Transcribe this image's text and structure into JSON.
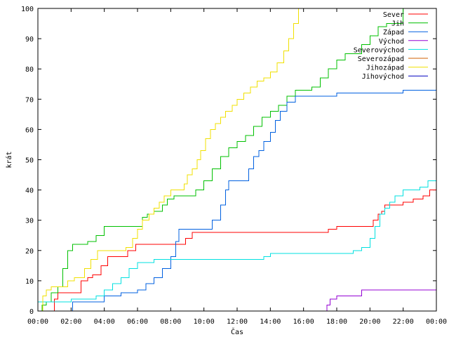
{
  "chart_data": {
    "type": "line",
    "title": "",
    "xlabel": "Čas",
    "ylabel": "krát",
    "xlim": [
      0,
      24
    ],
    "ylim": [
      0,
      100
    ],
    "grid": false,
    "legend_position": "top-right",
    "x_unit": "hours",
    "x_ticks": [
      {
        "value": 0,
        "label": "00:00"
      },
      {
        "value": 2,
        "label": "02:00"
      },
      {
        "value": 4,
        "label": "04:00"
      },
      {
        "value": 6,
        "label": "06:00"
      },
      {
        "value": 8,
        "label": "08:00"
      },
      {
        "value": 10,
        "label": "10:00"
      },
      {
        "value": 12,
        "label": "12:00"
      },
      {
        "value": 14,
        "label": "14:00"
      },
      {
        "value": 16,
        "label": "16:00"
      },
      {
        "value": 18,
        "label": "18:00"
      },
      {
        "value": 20,
        "label": "20:00"
      },
      {
        "value": 22,
        "label": "22:00"
      },
      {
        "value": 24,
        "label": "00:00"
      }
    ],
    "y_ticks": [
      {
        "value": 0,
        "label": "0"
      },
      {
        "value": 10,
        "label": "10"
      },
      {
        "value": 20,
        "label": "20"
      },
      {
        "value": 30,
        "label": "30"
      },
      {
        "value": 40,
        "label": "40"
      },
      {
        "value": 50,
        "label": "50"
      },
      {
        "value": 60,
        "label": "60"
      },
      {
        "value": 70,
        "label": "70"
      },
      {
        "value": 80,
        "label": "80"
      },
      {
        "value": 90,
        "label": "90"
      },
      {
        "value": 100,
        "label": "100"
      }
    ],
    "series": [
      {
        "name": "Sever",
        "color": "#ff0000",
        "x": [
          0.9,
          1.0,
          1.2,
          2.3,
          2.6,
          3.0,
          3.3,
          3.8,
          4.2,
          5.0,
          5.4,
          5.9,
          6.3,
          8.5,
          8.9,
          9.3,
          10.0,
          13.0,
          15.0,
          17.5,
          18.0,
          19.2,
          20.2,
          20.5,
          20.7,
          20.9,
          21.2,
          22.0,
          22.6,
          23.2,
          23.6,
          24.0
        ],
        "y": [
          0,
          4,
          6,
          6,
          10,
          11,
          12,
          15,
          18,
          18,
          20,
          22,
          22,
          22,
          24,
          26,
          26,
          26,
          26,
          27,
          28,
          28,
          30,
          32,
          33,
          35,
          35,
          36,
          37,
          38,
          40,
          40
        ]
      },
      {
        "name": "Jih",
        "color": "#00c000",
        "x": [
          0.1,
          0.25,
          0.5,
          0.8,
          1.2,
          1.5,
          1.8,
          2.1,
          2.5,
          3.0,
          3.5,
          4.0,
          5.0,
          6.0,
          6.3,
          6.6,
          7.0,
          7.5,
          7.8,
          8.2,
          8.5,
          9.0,
          9.5,
          10.0,
          10.5,
          11.0,
          11.5,
          12.0,
          12.5,
          13.0,
          13.5,
          14.0,
          14.5,
          15.0,
          15.5,
          16.0,
          16.5,
          17.0,
          17.5,
          18.0,
          18.5,
          19.0,
          19.5,
          20.0,
          20.5,
          21.0,
          21.5,
          22.0
        ],
        "y": [
          0,
          2,
          3,
          6,
          8,
          14,
          20,
          22,
          22,
          23,
          25,
          28,
          28,
          28,
          31,
          32,
          33,
          35,
          37,
          38,
          38,
          38,
          40,
          43,
          47,
          51,
          54,
          56,
          58,
          61,
          64,
          66,
          68,
          71,
          73,
          73,
          74,
          77,
          80,
          83,
          85,
          85,
          88,
          91,
          94,
          95,
          95,
          100
        ]
      },
      {
        "name": "Západ",
        "color": "#0060e0",
        "x": [
          0.0,
          2.0,
          2.1,
          3.5,
          4.0,
          5.0,
          5.5,
          6.0,
          6.5,
          7.0,
          7.5,
          8.0,
          8.3,
          8.5,
          9.0,
          10.0,
          10.5,
          11.0,
          11.3,
          11.5,
          12.0,
          12.3,
          12.7,
          13.0,
          13.3,
          13.6,
          14.0,
          14.3,
          14.6,
          15.0,
          15.5,
          16.0,
          17.0,
          18.0,
          20.0,
          22.0,
          24.0
        ],
        "y": [
          0,
          0,
          3,
          3,
          5,
          6,
          6,
          7,
          9,
          11,
          14,
          18,
          23,
          27,
          27,
          27,
          30,
          35,
          40,
          43,
          43,
          43,
          47,
          51,
          53,
          56,
          59,
          63,
          66,
          69,
          71,
          71,
          71,
          72,
          72,
          73,
          73
        ]
      },
      {
        "name": "Východ",
        "color": "#9400d3",
        "x": [
          17.3,
          17.4,
          17.6,
          18.0,
          19.0,
          19.5,
          21.0,
          24.0
        ],
        "y": [
          0,
          2,
          4,
          5,
          5,
          7,
          7,
          7
        ]
      },
      {
        "name": "Severovýchod",
        "color": "#00e0e0",
        "x": [
          0.0,
          1.0,
          2.0,
          3.0,
          3.5,
          4.0,
          4.5,
          5.0,
          5.5,
          6.0,
          7.0,
          8.0,
          10.0,
          13.0,
          13.6,
          14.0,
          16.0,
          18.0,
          19.0,
          19.5,
          20.0,
          20.3,
          20.6,
          20.9,
          21.2,
          21.5,
          22.0,
          22.5,
          23.0,
          23.5,
          24.0
        ],
        "y": [
          3,
          3,
          4,
          4,
          5,
          7,
          9,
          11,
          14,
          16,
          17,
          17,
          17,
          17,
          18,
          19,
          19,
          19,
          20,
          21,
          24,
          28,
          32,
          34,
          36,
          38,
          40,
          40,
          41,
          43,
          43
        ]
      },
      {
        "name": "Severozápad",
        "color": "#d06000",
        "x": [],
        "y": []
      },
      {
        "name": "Jihozápad",
        "color": "#f0e000",
        "x": [
          0.0,
          0.3,
          0.5,
          0.8,
          1.5,
          1.8,
          2.2,
          2.8,
          3.2,
          3.6,
          4.0,
          5.0,
          5.3,
          5.7,
          6.0,
          6.3,
          6.7,
          7.0,
          7.3,
          7.6,
          8.0,
          8.5,
          8.8,
          9.0,
          9.3,
          9.6,
          9.8,
          10.1,
          10.4,
          10.7,
          11.0,
          11.3,
          11.7,
          12.0,
          12.4,
          12.8,
          13.2,
          13.6,
          14.0,
          14.4,
          14.8,
          15.1,
          15.4,
          15.7
        ],
        "y": [
          0,
          5,
          7,
          8,
          8,
          10,
          11,
          14,
          17,
          20,
          20,
          20,
          21,
          24,
          27,
          30,
          32,
          34,
          36,
          38,
          40,
          40,
          42,
          45,
          47,
          50,
          53,
          57,
          60,
          62,
          64,
          66,
          68,
          70,
          72,
          74,
          76,
          77,
          79,
          82,
          86,
          90,
          95,
          100
        ]
      },
      {
        "name": "Jihovýchod",
        "color": "#0000c0",
        "x": [],
        "y": []
      }
    ]
  }
}
